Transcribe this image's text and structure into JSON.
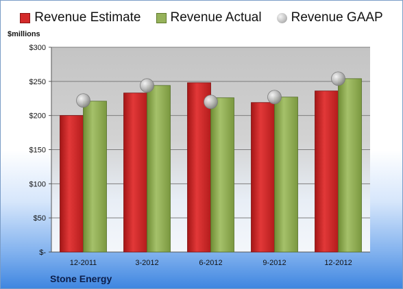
{
  "legend": {
    "estimate": "Revenue Estimate",
    "actual": "Revenue Actual",
    "gaap": "Revenue GAAP"
  },
  "unit_label": "$millions",
  "company": "Stone Energy",
  "colors": {
    "estimate": "#d42a2a",
    "actual": "#96b25a",
    "gaap": "#b8b8b8",
    "plot_bg": "#c6c6c6"
  },
  "chart_data": {
    "type": "bar",
    "title": "",
    "xlabel": "",
    "ylabel": "$millions",
    "categories": [
      "12-2011",
      "3-2012",
      "6-2012",
      "9-2012",
      "12-2012"
    ],
    "series": [
      {
        "name": "Revenue Estimate",
        "values": [
          200,
          233,
          248,
          219,
          236
        ]
      },
      {
        "name": "Revenue Actual",
        "values": [
          221,
          244,
          226,
          227,
          254
        ]
      },
      {
        "name": "Revenue GAAP",
        "values": [
          222,
          244,
          220,
          227,
          254
        ]
      }
    ],
    "ylim": [
      0,
      300
    ],
    "yticks": [
      0,
      50,
      100,
      150,
      200,
      250,
      300
    ],
    "ytick_labels": [
      "$-",
      "$50",
      "$100",
      "$150",
      "$200",
      "$250",
      "$300"
    ],
    "grid": true,
    "legend_position": "top"
  }
}
